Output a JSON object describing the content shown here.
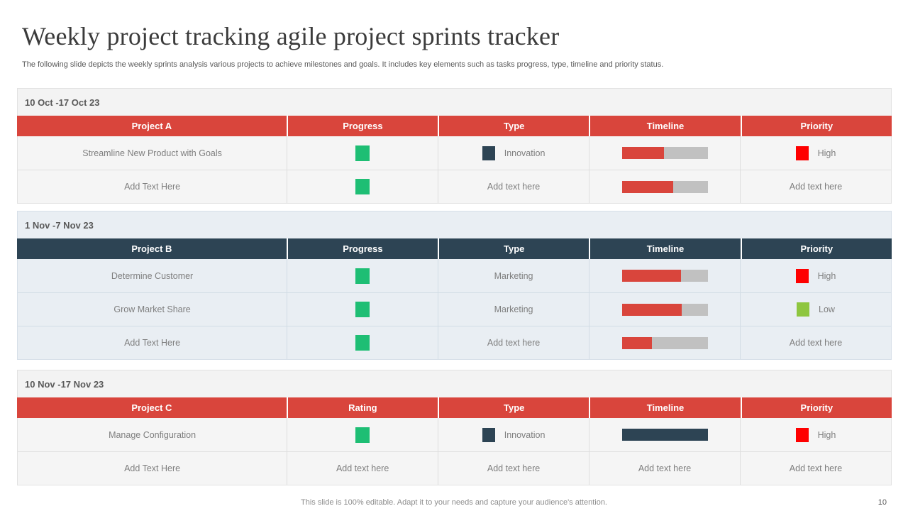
{
  "slide": {
    "title": "Weekly project tracking agile project sprints tracker",
    "subtitle": "The following slide depicts the weekly sprints analysis various projects to achieve milestones and goals. It includes key elements such as tasks progress, type, timeline and priority status.",
    "footer_note": "This slide is 100% editable. Adapt it to your needs and capture your audience's attention.",
    "page_number": "10"
  },
  "colors": {
    "red": "#d9453c",
    "dark": "#2d4454",
    "green": "#1ebe74",
    "light_green": "#8ec63f",
    "bright_red": "#fe0000",
    "bar_track": "#c1c1c1"
  },
  "themes": {
    "red": {
      "header_bg": "#d9453c",
      "band_bg": "#f3f3f3",
      "row_bg": "#f5f5f5",
      "border": "#e2e2e2",
      "divider": "#dedede"
    },
    "dark": {
      "header_bg": "#2d4454",
      "band_bg": "#e9eef3",
      "row_bg": "#e9eef3",
      "border": "#d7dfe8",
      "divider": "#d2dce5"
    }
  },
  "tables": [
    {
      "period": "10 Oct -17 Oct 23",
      "theme": "red",
      "columns": [
        "Project A",
        "Progress",
        "Type",
        "Timeline",
        "Priority"
      ],
      "rows": [
        [
          {
            "text": "Streamline New Product with Goals"
          },
          {
            "square": "green"
          },
          {
            "swatch": "dark",
            "text": "Innovation"
          },
          {
            "bar_pct": 49,
            "bar_color": "red"
          },
          {
            "swatch": "bright_red",
            "text": "High"
          }
        ],
        [
          {
            "text": "Add Text Here"
          },
          {
            "square": "green"
          },
          {
            "text": "Add text here"
          },
          {
            "bar_pct": 60,
            "bar_color": "red"
          },
          {
            "text": "Add text here"
          }
        ]
      ]
    },
    {
      "period": "1 Nov -7 Nov 23",
      "theme": "dark",
      "columns": [
        "Project B",
        "Progress",
        "Type",
        "Timeline",
        "Priority"
      ],
      "rows": [
        [
          {
            "text": "Determine Customer"
          },
          {
            "square": "green"
          },
          {
            "text": "Marketing"
          },
          {
            "bar_pct": 69,
            "bar_color": "red"
          },
          {
            "swatch": "bright_red",
            "text": "High"
          }
        ],
        [
          {
            "text": "Grow Market Share"
          },
          {
            "square": "green"
          },
          {
            "text": "Marketing"
          },
          {
            "bar_pct": 70,
            "bar_color": "red"
          },
          {
            "swatch": "light_green",
            "text": "Low"
          }
        ],
        [
          {
            "text": "Add Text Here"
          },
          {
            "square": "green"
          },
          {
            "text": "Add text here"
          },
          {
            "bar_pct": 35,
            "bar_color": "red"
          },
          {
            "text": "Add text here"
          }
        ]
      ]
    },
    {
      "period": "10 Nov -17 Nov 23",
      "theme": "red",
      "columns": [
        "Project C",
        "Rating",
        "Type",
        "Timeline",
        "Priority"
      ],
      "rows": [
        [
          {
            "text": "Manage Configuration"
          },
          {
            "square": "green"
          },
          {
            "swatch": "dark",
            "text": "Innovation"
          },
          {
            "bar_pct": 100,
            "bar_color": "dark"
          },
          {
            "swatch": "bright_red",
            "text": "High"
          }
        ],
        [
          {
            "text": "Add Text Here"
          },
          {
            "text": "Add text here"
          },
          {
            "text": "Add text here"
          },
          {
            "text": "Add text here"
          },
          {
            "text": "Add text here"
          }
        ]
      ]
    }
  ]
}
